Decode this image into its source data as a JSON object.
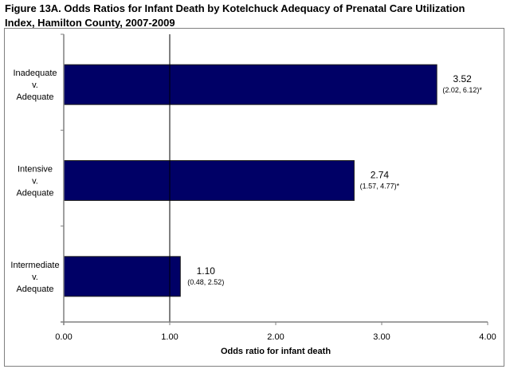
{
  "chart_data": {
    "type": "bar",
    "orientation": "horizontal",
    "title": "Figure 13A. Odds Ratios for Infant Death by Kotelchuck Adequacy of Prenatal Care Utilization Index, Hamilton County, 2007-2009",
    "title_lines": [
      "Figure 13A. Odds Ratios for Infant Death by Kotelchuck Adequacy of Prenatal Care Utilization",
      "Index, Hamilton County, 2007-2009"
    ],
    "categories": [
      {
        "lines": [
          "Inadequate",
          "v.",
          "Adequate"
        ]
      },
      {
        "lines": [
          "Intensive",
          "v.",
          "Adequate"
        ]
      },
      {
        "lines": [
          "Intermediate",
          "v.",
          "Adequate"
        ]
      }
    ],
    "values": [
      3.52,
      2.74,
      1.1
    ],
    "value_labels": [
      "3.52",
      "2.74",
      "1.10"
    ],
    "ci_labels": [
      "(2.02, 6.12)*",
      "(1.57, 4.77)*",
      "(0.48, 2.52)"
    ],
    "confidence_intervals": [
      [
        2.02,
        6.12
      ],
      [
        1.57,
        4.77
      ],
      [
        0.48,
        2.52
      ]
    ],
    "significant": [
      true,
      true,
      false
    ],
    "xlabel": "Odds ratio for infant death",
    "ylabel": "",
    "xlim": [
      0,
      4
    ],
    "xticks": [
      0,
      1,
      2,
      3,
      4
    ],
    "xtick_labels": [
      "0.00",
      "1.00",
      "2.00",
      "3.00",
      "4.00"
    ],
    "reference_line": 1.0,
    "grid": false,
    "legend": "none",
    "bar_color": "#000066"
  }
}
